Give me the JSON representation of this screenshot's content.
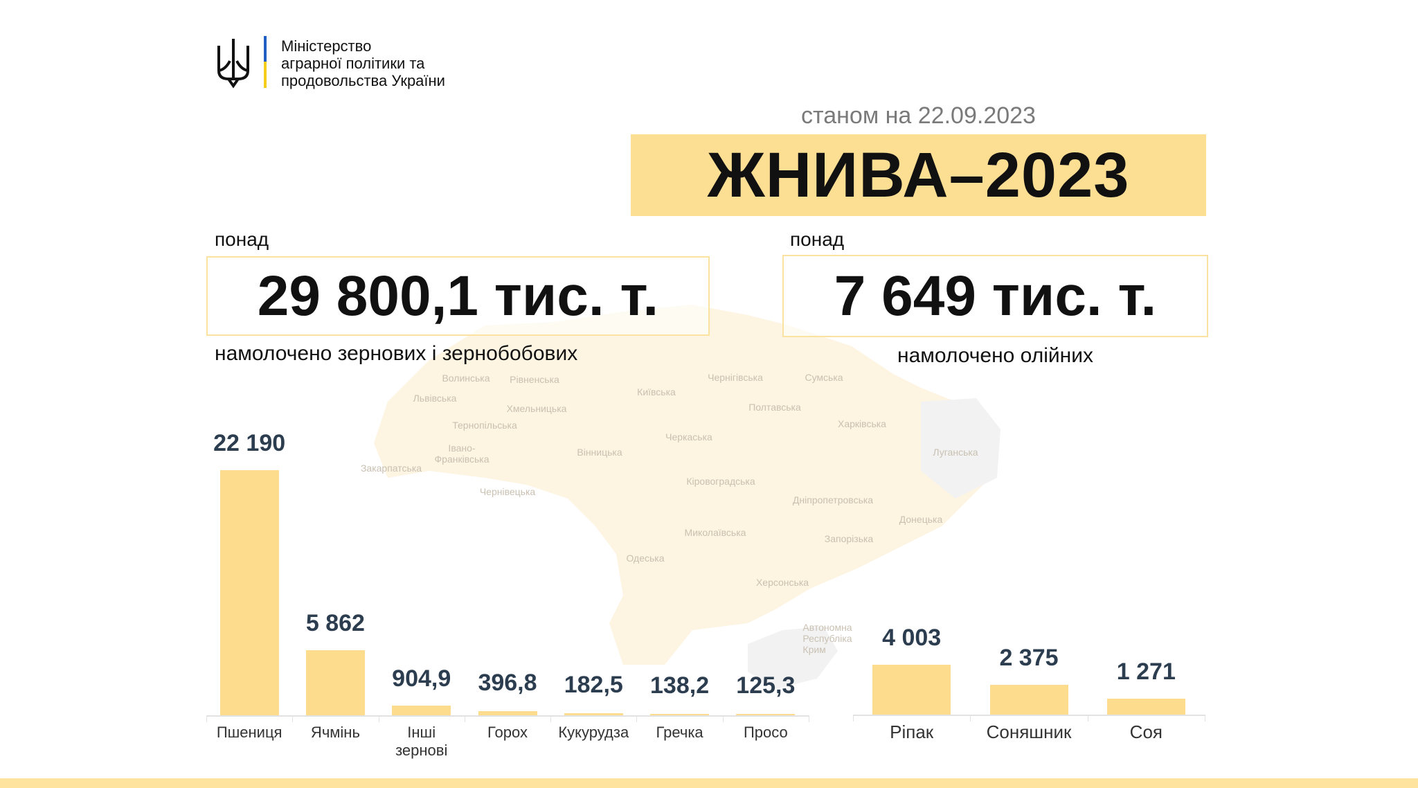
{
  "header": {
    "ministry_name": "Міністерство аграрної політики та продовольства України",
    "ministry_lines": [
      "Міністерство",
      "аграрної політики та",
      "продовольства України"
    ],
    "as_of": "станом на 22.09.2023",
    "title": "ЖНИВА–2023"
  },
  "colors": {
    "accent_yellow": "#fddf94",
    "bar": "#fddc8e",
    "value_text": "#2b3d4f",
    "flag_blue": "#1f5fc2",
    "flag_yellow": "#f6cc1a"
  },
  "stats": [
    {
      "prefix": "понад",
      "value": "29 800,1 тис. т.",
      "caption": "намолочено зернових і зернобобових"
    },
    {
      "prefix": "понад",
      "value": "7 649 тис. т.",
      "caption": "намолочено олійних"
    }
  ],
  "map_regions": [
    "Волинська",
    "Рівненська",
    "Чернігівська",
    "Сумська",
    "Львівська",
    "Хмельницька",
    "Київська",
    "Полтавська",
    "Харківська",
    "Тернопільська",
    "Черкаська",
    "Луганська",
    "Івано-\nФранківська",
    "Закарпатська",
    "Вінницька",
    "Кіровоградська",
    "Дніпропетровська",
    "Донецька",
    "Чернівецька",
    "Миколаївська",
    "Запорізька",
    "Одеська",
    "Херсонська",
    "Автономна\nРеспубліка\nКрим"
  ],
  "chart_data": [
    {
      "type": "bar",
      "categories": [
        "Пшениця",
        "Ячмінь",
        "Інші\nзернові",
        "Горох",
        "Кукурудза",
        "Гречка",
        "Просо"
      ],
      "values": [
        22190,
        5862,
        904.9,
        396.8,
        182.5,
        138.2,
        125.3
      ],
      "value_labels": [
        "22 190",
        "5 862",
        "904,9",
        "396,8",
        "182,5",
        "138,2",
        "125,3"
      ],
      "ylim": [
        0,
        22190
      ]
    },
    {
      "type": "bar",
      "categories": [
        "Ріпак",
        "Соняшник",
        "Соя"
      ],
      "values": [
        4003,
        2375,
        1271
      ],
      "value_labels": [
        "4 003",
        "2 375",
        "1 271"
      ],
      "ylim": [
        0,
        4003
      ]
    }
  ]
}
